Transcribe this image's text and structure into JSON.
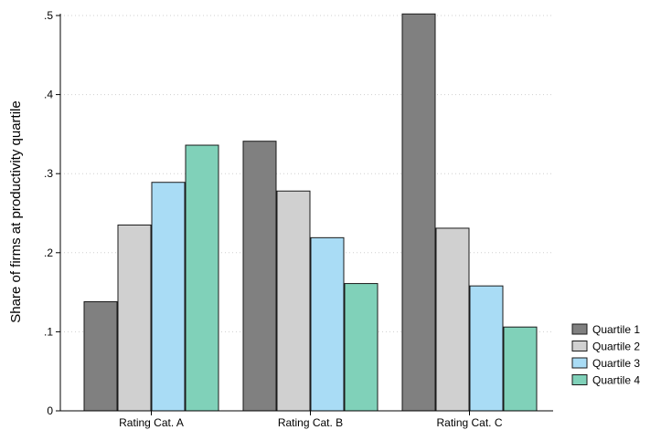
{
  "chart_data": {
    "type": "bar",
    "title": "",
    "xlabel": "",
    "ylabel": "Share of firms at productivity quartile",
    "categories": [
      "Rating Cat. A",
      "Rating Cat. B",
      "Rating Cat. C"
    ],
    "series": [
      {
        "name": "Quartile 1",
        "color": "#808080",
        "values": [
          0.138,
          0.341,
          0.502
        ]
      },
      {
        "name": "Quartile 2",
        "color": "#d0d0d0",
        "values": [
          0.235,
          0.278,
          0.231
        ]
      },
      {
        "name": "Quartile 3",
        "color": "#a9dcf5",
        "values": [
          0.289,
          0.219,
          0.158
        ]
      },
      {
        "name": "Quartile 4",
        "color": "#80d1b9",
        "values": [
          0.336,
          0.161,
          0.106
        ]
      }
    ],
    "ylim": [
      0,
      0.5
    ],
    "yticks": [
      0,
      0.1,
      0.2,
      0.3,
      0.4,
      0.5
    ],
    "ytick_labels": [
      "0",
      ".1",
      ".2",
      ".3",
      ".4",
      ".5"
    ],
    "grid": true,
    "legend_position": "bottom-right"
  }
}
